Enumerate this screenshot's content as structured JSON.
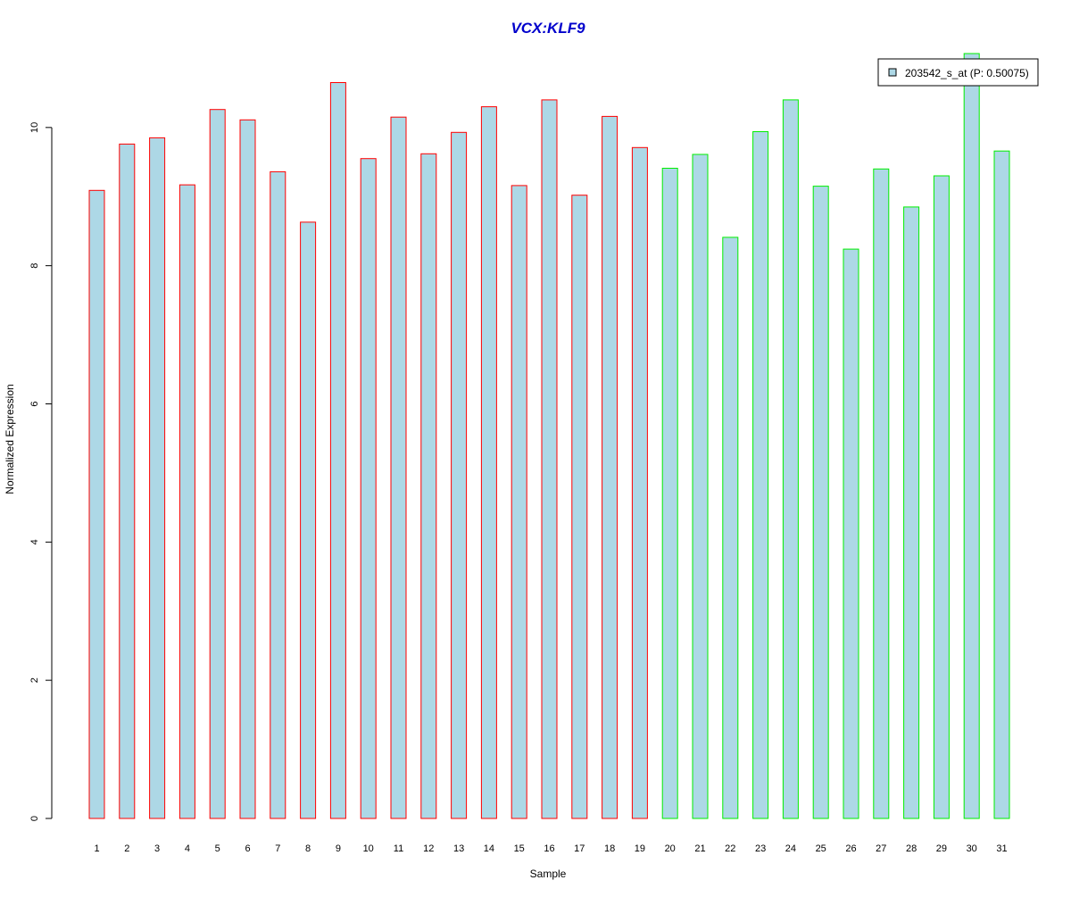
{
  "chart_data": {
    "type": "bar",
    "title": "VCX:KLF9",
    "xlabel": "Sample",
    "ylabel": "Normalized Expression",
    "categories": [
      "1",
      "2",
      "3",
      "4",
      "5",
      "6",
      "7",
      "8",
      "9",
      "10",
      "11",
      "12",
      "13",
      "14",
      "15",
      "16",
      "17",
      "18",
      "19",
      "20",
      "21",
      "22",
      "23",
      "24",
      "25",
      "26",
      "27",
      "28",
      "29",
      "30",
      "31"
    ],
    "series": [
      {
        "name": "203542_s_at (P: 0.50075)",
        "values": [
          9.09,
          9.76,
          9.85,
          9.17,
          10.26,
          10.11,
          9.36,
          8.63,
          10.65,
          9.55,
          10.15,
          9.62,
          9.93,
          10.3,
          9.16,
          10.4,
          9.02,
          10.16,
          9.71,
          9.41,
          9.61,
          8.41,
          9.94,
          10.4,
          9.15,
          8.24,
          9.4,
          8.85,
          9.3,
          11.07,
          9.66
        ]
      }
    ],
    "groups": [
      {
        "samples": [
          1,
          19
        ],
        "border_color": "#ff0000"
      },
      {
        "samples": [
          20,
          31
        ],
        "border_color": "#00ee00"
      }
    ],
    "y_ticks": [
      0,
      2,
      4,
      6,
      8,
      10
    ],
    "ylim": [
      0,
      11.07
    ],
    "grid": false,
    "legend_position": "top-right",
    "colors": {
      "bar_fill": "#add8e6",
      "title": "#0000cc",
      "group1_border": "#ff0000",
      "group2_border": "#00ee00"
    }
  }
}
